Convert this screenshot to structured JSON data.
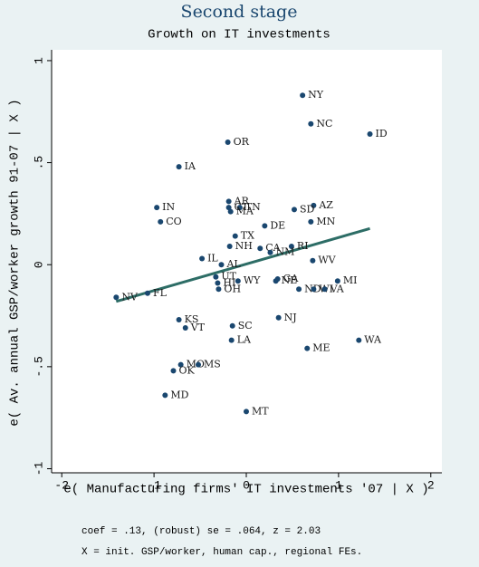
{
  "chart_data": {
    "type": "scatter",
    "title": "Second stage",
    "subtitle": "Growth on IT investments",
    "x_label": "e( Manufacturing firms' IT investments '07 | X )",
    "y_label": "e( Av. annual GSP/worker growth 91-07 | X )",
    "notes": [
      "coef = .13, (robust) se = .064, z = 2.03",
      "X = init. GSP/worker, human cap., regional FEs."
    ],
    "xlim": [
      -2.11,
      2.12
    ],
    "ylim": [
      -1.02,
      1.053
    ],
    "xticks": [
      -2,
      -1,
      0,
      1,
      2
    ],
    "yticks": [
      1,
      {
        "value": 0.5,
        "label": ".5"
      },
      0,
      {
        "value": -0.5,
        "label": "-.5"
      },
      -1
    ],
    "points": {
      "color": "#1a476f",
      "labels": [
        "NY",
        "NC",
        "ID",
        "OR",
        "IA",
        "IN",
        "AR",
        "CT",
        "TN",
        "MA",
        "AZ",
        "SD",
        "CO",
        "MN",
        "DE",
        "TX",
        "NH",
        "CA",
        "RI",
        "NM",
        "WV",
        "IL",
        "AL",
        "UT",
        "GA",
        "NE",
        "WY",
        "HI",
        "OH",
        "MI",
        "ND",
        "WI",
        "VA",
        "NV",
        "FL",
        "NJ",
        "KS",
        "VT",
        "SC",
        "LA",
        "WA",
        "ME",
        "MO",
        "MS",
        "OK",
        "MD",
        "MT"
      ],
      "x": [
        0.61,
        0.7,
        1.34,
        -0.2,
        -0.73,
        -0.97,
        -0.19,
        -0.19,
        -0.07,
        -0.17,
        0.73,
        0.52,
        -0.93,
        0.7,
        0.2,
        -0.12,
        -0.18,
        0.15,
        0.49,
        0.26,
        0.72,
        -0.48,
        -0.27,
        -0.33,
        0.34,
        0.32,
        -0.09,
        -0.31,
        -0.3,
        0.99,
        0.57,
        0.73,
        0.85,
        -1.41,
        -1.07,
        0.35,
        -0.73,
        -0.66,
        -0.15,
        -0.16,
        1.22,
        0.66,
        -0.71,
        -0.52,
        -0.79,
        -0.88,
        0.0
      ],
      "y": [
        0.83,
        0.69,
        0.64,
        0.6,
        0.48,
        0.28,
        0.31,
        0.28,
        0.28,
        0.26,
        0.29,
        0.27,
        0.21,
        0.21,
        0.19,
        0.14,
        0.09,
        0.08,
        0.09,
        0.06,
        0.02,
        0.03,
        0.0,
        -0.06,
        -0.07,
        -0.08,
        -0.08,
        -0.09,
        -0.12,
        -0.08,
        -0.12,
        -0.12,
        -0.12,
        -0.16,
        -0.14,
        -0.26,
        -0.27,
        -0.31,
        -0.3,
        -0.37,
        -0.37,
        -0.41,
        -0.49,
        -0.49,
        -0.52,
        -0.64,
        -0.72
      ]
    },
    "fit_line": {
      "color": "#2d6d66",
      "x": [
        -1.41,
        1.34
      ],
      "y": [
        -0.18,
        0.177
      ]
    }
  }
}
